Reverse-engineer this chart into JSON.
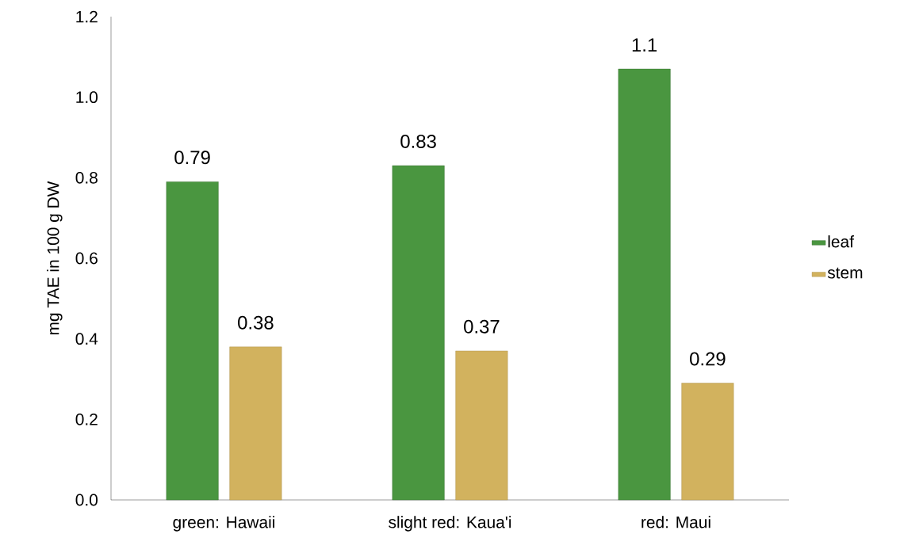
{
  "chart_data": {
    "type": "bar",
    "ylabel": "mg TAE in 100 g DW",
    "categories": [
      "green: Hawaii",
      "slight red: Kaua'i",
      "red: Maui"
    ],
    "series": [
      {
        "name": "leaf",
        "color": "#4a9640",
        "values": [
          0.79,
          0.83,
          1.07
        ],
        "value_labels": [
          "0.79",
          "0.83",
          "1.1"
        ]
      },
      {
        "name": "stem",
        "color": "#d2b25e",
        "values": [
          0.38,
          0.37,
          0.29
        ],
        "value_labels": [
          "0.38",
          "0.37",
          "0.29"
        ]
      }
    ],
    "ylim": [
      0,
      1.2
    ],
    "yticks": [
      {
        "value": 0,
        "label": "0.0"
      },
      {
        "value": 0.2,
        "label": "0.2"
      },
      {
        "value": 0.4,
        "label": "0.4"
      },
      {
        "value": 0.6,
        "label": "0.6"
      },
      {
        "value": 0.8,
        "label": "0.8"
      },
      {
        "value": 1.0,
        "label": "1.0"
      },
      {
        "value": 1.2,
        "label": "1.2"
      }
    ],
    "grid": false,
    "legend": "right"
  }
}
